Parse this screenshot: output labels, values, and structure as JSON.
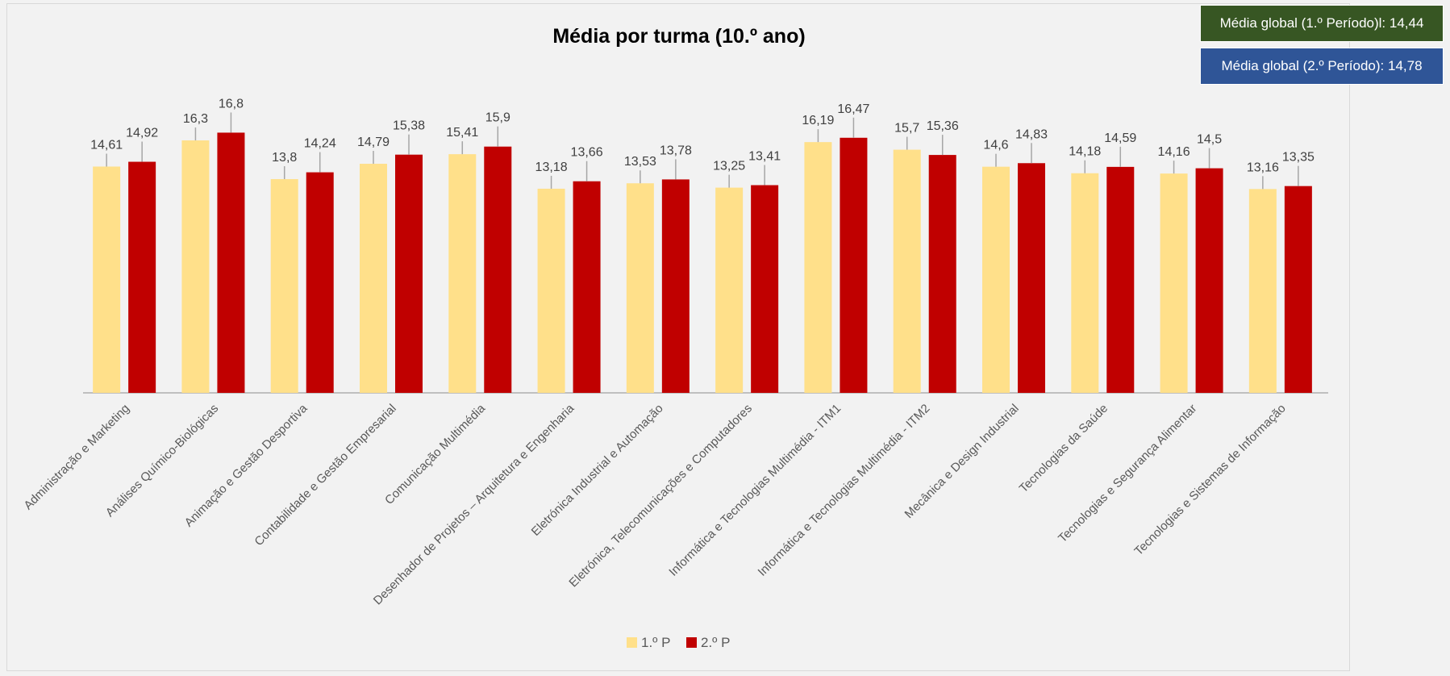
{
  "badges": {
    "p1": {
      "text": "Média global (1.º Período)l: 14,44",
      "color": "#375623"
    },
    "p2": {
      "text": "Média global (2.º Período): 14,78",
      "color": "#2f5597"
    }
  },
  "chart_data": {
    "type": "bar",
    "title": "Média por turma (10.º ano)",
    "xlabel": "",
    "ylabel": "",
    "ylim": [
      0,
      20
    ],
    "grid": false,
    "legend_position": "bottom",
    "categories": [
      "Administração e Marketing",
      "Análises Químico-Biológicas",
      "Animação e Gestão Desportiva",
      "Contabilidade e Gestão Empresarial",
      "Comunicação Multimédia",
      "Desenhador de Projetos – Arquitetura e Engenharia",
      "Eletrónica Industrial e Automação",
      "Eletrónica, Telecomunicações e Computadores",
      "Informática e Tecnologias Multimédia - ITM1",
      "Informática e Tecnologias Multimédia - ITM2",
      "Mecânica e Design Industrial",
      "Tecnologias da Saúde",
      "Tecnologias e Segurança Alimentar",
      "Tecnologias e Sistemas de Informação"
    ],
    "series": [
      {
        "name": "1.º P",
        "color": "#ffe08a",
        "values": [
          14.61,
          16.3,
          13.8,
          14.79,
          15.41,
          13.18,
          13.53,
          13.25,
          16.19,
          15.7,
          14.6,
          14.18,
          14.16,
          13.16
        ],
        "labels": [
          "14,61",
          "16,3",
          "13,8",
          "14,79",
          "15,41",
          "13,18",
          "13,53",
          "13,25",
          "16,19",
          "15,7",
          "14,6",
          "14,18",
          "14,16",
          "13,16"
        ]
      },
      {
        "name": "2.º P",
        "color": "#c00000",
        "values": [
          14.92,
          16.8,
          14.24,
          15.38,
          15.9,
          13.66,
          13.78,
          13.41,
          16.47,
          15.36,
          14.83,
          14.59,
          14.5,
          13.35
        ],
        "labels": [
          "14,92",
          "16,8",
          "14,24",
          "15,38",
          "15,9",
          "13,66",
          "13,78",
          "13,41",
          "16,47",
          "15,36",
          "14,83",
          "14,59",
          "14,5",
          "13,35"
        ]
      }
    ]
  }
}
